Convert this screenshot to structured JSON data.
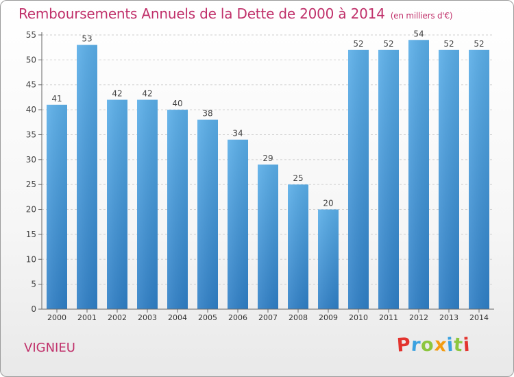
{
  "chart_data": {
    "type": "bar",
    "title": "Remboursements Annuels de la Dette de 2000 à 2014",
    "unit": "(en milliers d'€)",
    "categories": [
      "2000",
      "2001",
      "2002",
      "2003",
      "2004",
      "2005",
      "2006",
      "2007",
      "2008",
      "2009",
      "2010",
      "2011",
      "2012",
      "2013",
      "2014"
    ],
    "values": [
      41,
      53,
      42,
      42,
      40,
      38,
      34,
      29,
      25,
      20,
      52,
      52,
      54,
      52,
      52
    ],
    "ylim": [
      0,
      55
    ],
    "yticks": [
      0,
      5,
      10,
      15,
      20,
      25,
      30,
      35,
      40,
      45,
      50,
      55
    ],
    "grid": "horizontal dashed",
    "bar_color": "#3a8fd6"
  },
  "commune": "VIGNIEU",
  "logo": {
    "text": "Proxiti",
    "letters": [
      {
        "ch": "P",
        "color": "#e3342f"
      },
      {
        "ch": "r",
        "color": "#3aa1e0"
      },
      {
        "ch": "o",
        "color": "#8cc63f"
      },
      {
        "ch": "x",
        "color": "#f39c12"
      },
      {
        "ch": "i",
        "color": "#3aa1e0"
      },
      {
        "ch": "t",
        "color": "#8cc63f"
      },
      {
        "ch": "i",
        "color": "#e3342f"
      }
    ]
  }
}
